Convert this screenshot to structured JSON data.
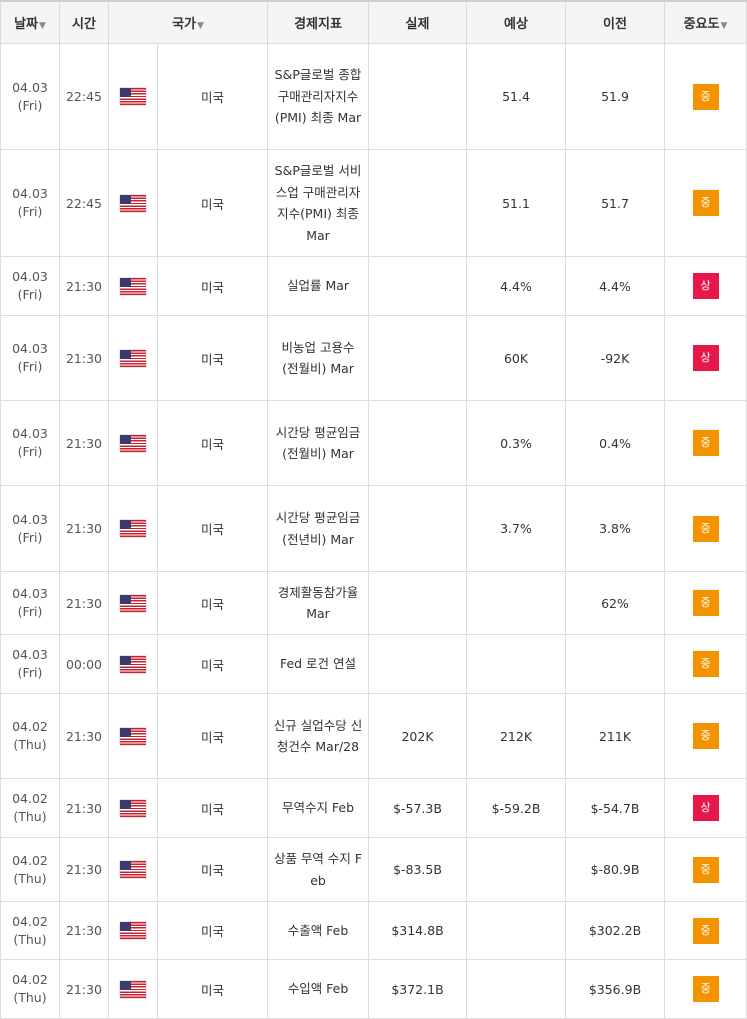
{
  "header": {
    "date": "날짜",
    "time": "시간",
    "country": "국가",
    "indicator": "경제지표",
    "actual": "실제",
    "forecast": "예상",
    "previous": "이전",
    "importance": "중요도",
    "sort_icon": "▼"
  },
  "importance_colors": {
    "상": "#e8174a",
    "중": "#f39300"
  },
  "icons": {
    "flag": "us-flag-icon"
  },
  "rows": [
    {
      "date": "04.03",
      "day": "(Fri)",
      "time": "22:45",
      "country": "미국",
      "indicator": "S&P글로벌 종합 구매관리자지수(PMI) 최종 Mar",
      "actual": "",
      "forecast": "51.4",
      "previous": "51.9",
      "importance": "중"
    },
    {
      "date": "04.03",
      "day": "(Fri)",
      "time": "22:45",
      "country": "미국",
      "indicator": "S&P글로벌 서비스업 구매관리자지수(PMI) 최종 Mar",
      "actual": "",
      "forecast": "51.1",
      "previous": "51.7",
      "importance": "중"
    },
    {
      "date": "04.03",
      "day": "(Fri)",
      "time": "21:30",
      "country": "미국",
      "indicator": "실업률 Mar",
      "actual": "",
      "forecast": "4.4%",
      "previous": "4.4%",
      "importance": "상"
    },
    {
      "date": "04.03",
      "day": "(Fri)",
      "time": "21:30",
      "country": "미국",
      "indicator": "비농업 고용수 (전월비) Mar",
      "actual": "",
      "forecast": "60K",
      "previous": "-92K",
      "importance": "상"
    },
    {
      "date": "04.03",
      "day": "(Fri)",
      "time": "21:30",
      "country": "미국",
      "indicator": "시간당 평균임금 (전월비) Mar",
      "actual": "",
      "forecast": "0.3%",
      "previous": "0.4%",
      "importance": "중"
    },
    {
      "date": "04.03",
      "day": "(Fri)",
      "time": "21:30",
      "country": "미국",
      "indicator": "시간당 평균임금 (전년비) Mar",
      "actual": "",
      "forecast": "3.7%",
      "previous": "3.8%",
      "importance": "중"
    },
    {
      "date": "04.03",
      "day": "(Fri)",
      "time": "21:30",
      "country": "미국",
      "indicator": "경제활동참가율 Mar",
      "actual": "",
      "forecast": "",
      "previous": "62%",
      "importance": "중"
    },
    {
      "date": "04.03",
      "day": "(Fri)",
      "time": "00:00",
      "country": "미국",
      "indicator": "Fed 로건 연설",
      "actual": "",
      "forecast": "",
      "previous": "",
      "importance": "중"
    },
    {
      "date": "04.02",
      "day": "(Thu)",
      "time": "21:30",
      "country": "미국",
      "indicator": "신규 실업수당 신청건수 Mar/28",
      "actual": "202K",
      "forecast": "212K",
      "previous": "211K",
      "importance": "중"
    },
    {
      "date": "04.02",
      "day": "(Thu)",
      "time": "21:30",
      "country": "미국",
      "indicator": "무역수지 Feb",
      "actual": "$-57.3B",
      "forecast": "$-59.2B",
      "previous": "$-54.7B",
      "importance": "상"
    },
    {
      "date": "04.02",
      "day": "(Thu)",
      "time": "21:30",
      "country": "미국",
      "indicator": "상품 무역 수지 Feb",
      "actual": "$-83.5B",
      "forecast": "",
      "previous": "$-80.9B",
      "importance": "중"
    },
    {
      "date": "04.02",
      "day": "(Thu)",
      "time": "21:30",
      "country": "미국",
      "indicator": "수출액 Feb",
      "actual": "$314.8B",
      "forecast": "",
      "previous": "$302.2B",
      "importance": "중"
    },
    {
      "date": "04.02",
      "day": "(Thu)",
      "time": "21:30",
      "country": "미국",
      "indicator": "수입액 Feb",
      "actual": "$372.1B",
      "forecast": "",
      "previous": "$356.9B",
      "importance": "중"
    }
  ]
}
